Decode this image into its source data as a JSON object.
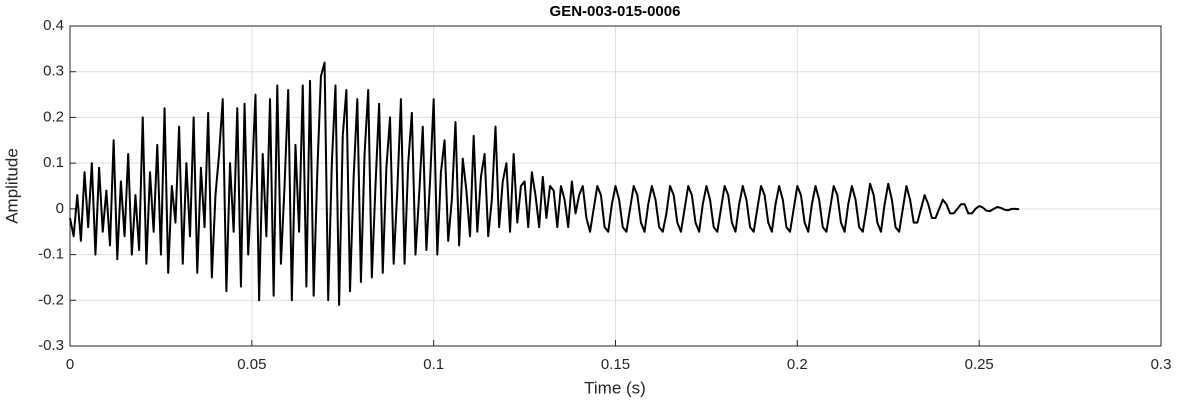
{
  "chart_data": {
    "type": "line",
    "title": "GEN-003-015-0006",
    "xlabel": "Time (s)",
    "ylabel": "Amplitude",
    "color": "#000000",
    "grid": true,
    "xlim": [
      0,
      0.3
    ],
    "xticks": [
      0,
      0.05,
      0.1,
      0.15,
      0.2,
      0.25,
      0.3
    ],
    "ylim": [
      -0.3,
      0.4
    ],
    "yticks": [
      -0.3,
      -0.2,
      -0.1,
      0,
      0.1,
      0.2,
      0.3,
      0.4
    ],
    "x": [
      0,
      0.001,
      0.002,
      0.003,
      0.004,
      0.005,
      0.006,
      0.007,
      0.008,
      0.009,
      0.01,
      0.011,
      0.012,
      0.013,
      0.014,
      0.015,
      0.016,
      0.017,
      0.018,
      0.019,
      0.02,
      0.021,
      0.022,
      0.023,
      0.024,
      0.025,
      0.026,
      0.027,
      0.028,
      0.029,
      0.03,
      0.031,
      0.032,
      0.033,
      0.034,
      0.035,
      0.036,
      0.037,
      0.038,
      0.039,
      0.04,
      0.041,
      0.042,
      0.043,
      0.044,
      0.045,
      0.046,
      0.047,
      0.048,
      0.049,
      0.05,
      0.051,
      0.052,
      0.053,
      0.054,
      0.055,
      0.056,
      0.057,
      0.058,
      0.059,
      0.06,
      0.061,
      0.062,
      0.063,
      0.064,
      0.065,
      0.066,
      0.067,
      0.068,
      0.069,
      0.07,
      0.071,
      0.072,
      0.073,
      0.074,
      0.075,
      0.076,
      0.077,
      0.078,
      0.079,
      0.08,
      0.081,
      0.082,
      0.083,
      0.084,
      0.085,
      0.086,
      0.087,
      0.088,
      0.089,
      0.09,
      0.091,
      0.092,
      0.093,
      0.094,
      0.095,
      0.096,
      0.097,
      0.098,
      0.099,
      0.1,
      0.101,
      0.102,
      0.103,
      0.104,
      0.105,
      0.106,
      0.107,
      0.108,
      0.109,
      0.11,
      0.111,
      0.112,
      0.113,
      0.114,
      0.115,
      0.116,
      0.117,
      0.118,
      0.119,
      0.12,
      0.121,
      0.122,
      0.123,
      0.124,
      0.125,
      0.126,
      0.127,
      0.128,
      0.129,
      0.13,
      0.131,
      0.132,
      0.133,
      0.134,
      0.135,
      0.136,
      0.137,
      0.138,
      0.139,
      0.14,
      0.141,
      0.142,
      0.143,
      0.144,
      0.145,
      0.146,
      0.147,
      0.148,
      0.149,
      0.15,
      0.151,
      0.152,
      0.153,
      0.154,
      0.155,
      0.156,
      0.157,
      0.158,
      0.159,
      0.16,
      0.161,
      0.162,
      0.163,
      0.164,
      0.165,
      0.166,
      0.167,
      0.168,
      0.169,
      0.17,
      0.171,
      0.172,
      0.173,
      0.174,
      0.175,
      0.176,
      0.177,
      0.178,
      0.179,
      0.18,
      0.181,
      0.182,
      0.183,
      0.184,
      0.185,
      0.186,
      0.187,
      0.188,
      0.189,
      0.19,
      0.191,
      0.192,
      0.193,
      0.194,
      0.195,
      0.196,
      0.197,
      0.198,
      0.199,
      0.2,
      0.201,
      0.202,
      0.203,
      0.204,
      0.205,
      0.206,
      0.207,
      0.208,
      0.209,
      0.21,
      0.211,
      0.212,
      0.213,
      0.214,
      0.215,
      0.216,
      0.217,
      0.218,
      0.219,
      0.22,
      0.221,
      0.222,
      0.223,
      0.224,
      0.225,
      0.226,
      0.227,
      0.228,
      0.229,
      0.23,
      0.231,
      0.232,
      0.233,
      0.234,
      0.235,
      0.236,
      0.237,
      0.238,
      0.239,
      0.24,
      0.241,
      0.242,
      0.243,
      0.244,
      0.245,
      0.246,
      0.247,
      0.248,
      0.249,
      0.25,
      0.251,
      0.252,
      0.253,
      0.254,
      0.255,
      0.256,
      0.257,
      0.258,
      0.259,
      0.26,
      0.261
    ],
    "values": [
      -0.02,
      -0.06,
      0.03,
      -0.07,
      0.08,
      -0.04,
      0.1,
      -0.1,
      0.09,
      -0.05,
      0.04,
      -0.08,
      0.15,
      -0.11,
      0.06,
      -0.06,
      0.12,
      -0.1,
      0.03,
      -0.09,
      0.2,
      -0.12,
      0.08,
      -0.05,
      0.14,
      -0.1,
      0.22,
      -0.14,
      0.05,
      -0.03,
      0.18,
      -0.12,
      0.1,
      -0.06,
      0.2,
      -0.14,
      0.09,
      -0.04,
      0.21,
      -0.15,
      0.03,
      0.12,
      0.24,
      -0.18,
      0.1,
      -0.05,
      0.22,
      -0.17,
      0.23,
      -0.1,
      0.06,
      0.25,
      -0.2,
      0.12,
      -0.06,
      0.24,
      -0.19,
      0.27,
      -0.12,
      0.05,
      0.26,
      -0.2,
      0.14,
      -0.05,
      0.27,
      -0.17,
      0.28,
      -0.19,
      0.08,
      0.29,
      0.32,
      -0.2,
      0.1,
      0.27,
      -0.21,
      0.16,
      0.26,
      -0.18,
      0.07,
      0.24,
      -0.16,
      0.12,
      0.26,
      -0.15,
      0.05,
      0.23,
      -0.14,
      0.09,
      0.2,
      -0.12,
      0.04,
      0.24,
      -0.12,
      0.1,
      0.21,
      -0.1,
      0.03,
      0.18,
      -0.09,
      0.06,
      0.24,
      -0.1,
      0.08,
      0.15,
      -0.07,
      0.02,
      0.19,
      -0.08,
      0.11,
      0.04,
      -0.06,
      0.16,
      -0.05,
      0.07,
      0.12,
      -0.06,
      0.02,
      0.18,
      -0.04,
      0.06,
      0.1,
      -0.05,
      0.12,
      -0.03,
      0.05,
      0.06,
      -0.04,
      0.08,
      0.03,
      -0.04,
      0.07,
      -0.02,
      0.05,
      0.04,
      -0.04,
      0.05,
      0.02,
      -0.04,
      0.06,
      -0.01,
      0.03,
      0.05,
      -0.02,
      -0.05,
      0.0,
      0.05,
      0.03,
      -0.04,
      -0.05,
      0.01,
      0.05,
      0.02,
      -0.04,
      -0.05,
      0.0,
      0.05,
      0.03,
      -0.03,
      -0.05,
      0.01,
      0.05,
      0.02,
      -0.04,
      -0.05,
      -0.01,
      0.05,
      0.03,
      -0.03,
      -0.05,
      0.0,
      0.05,
      0.03,
      -0.03,
      -0.05,
      0.01,
      0.05,
      0.02,
      -0.04,
      -0.05,
      0.0,
      0.05,
      0.03,
      -0.03,
      -0.05,
      0.01,
      0.05,
      0.02,
      -0.04,
      -0.05,
      0.0,
      0.05,
      0.03,
      -0.03,
      -0.05,
      0.01,
      0.05,
      0.02,
      -0.04,
      -0.05,
      0.0,
      0.05,
      0.03,
      -0.03,
      -0.05,
      0.01,
      0.05,
      0.02,
      -0.04,
      -0.05,
      0.0,
      0.05,
      0.03,
      -0.03,
      -0.05,
      0.01,
      0.05,
      0.02,
      -0.04,
      -0.05,
      0.0,
      0.055,
      0.03,
      -0.03,
      -0.05,
      0.01,
      0.055,
      0.02,
      -0.04,
      -0.05,
      0.0,
      0.05,
      0.02,
      -0.03,
      -0.03,
      0.0,
      0.03,
      0.01,
      -0.02,
      -0.02,
      0.0,
      0.02,
      0.01,
      -0.01,
      -0.01,
      0.0,
      0.01,
      0.01,
      -0.01,
      -0.01,
      0.0,
      0.006,
      0.003,
      -0.004,
      -0.005,
      0.0,
      0.004,
      0.002,
      -0.002,
      -0.003,
      0.0,
      0.0,
      -0.001
    ]
  }
}
